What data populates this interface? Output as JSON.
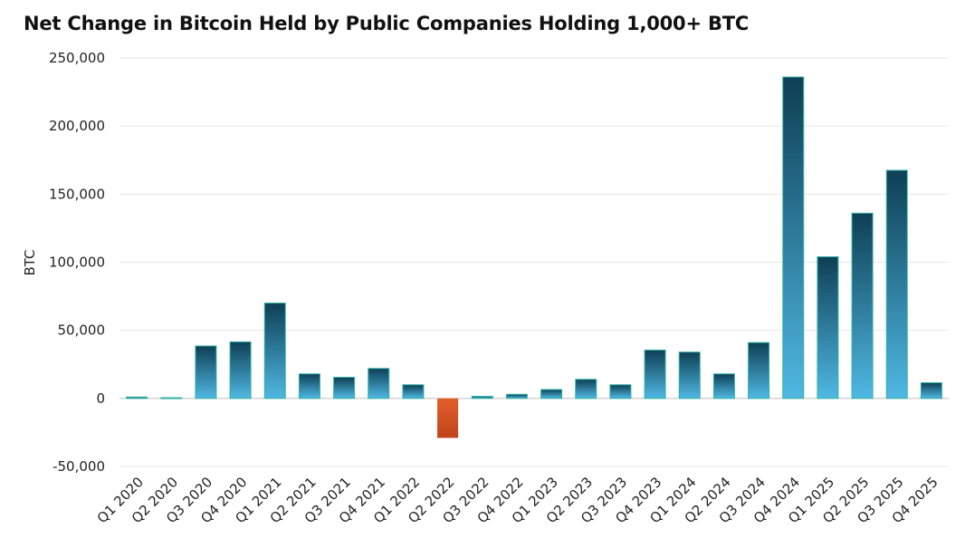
{
  "chart_data": {
    "type": "bar",
    "title": "Net Change in Bitcoin Held by Public Companies Holding 1,000+ BTC",
    "xlabel": "",
    "ylabel": "BTC",
    "ylim": [
      -50000,
      250000
    ],
    "yticks": [
      -50000,
      0,
      50000,
      100000,
      150000,
      200000,
      250000
    ],
    "ytick_labels": [
      "-50,000",
      "0",
      "50,000",
      "100,000",
      "150,000",
      "200,000",
      "250,000"
    ],
    "grid": true,
    "legend": "none",
    "categories": [
      "Q1 2020",
      "Q2 2020",
      "Q3 2020",
      "Q4 2020",
      "Q1 2021",
      "Q2 2021",
      "Q3 2021",
      "Q4 2021",
      "Q1 2022",
      "Q2 2022",
      "Q3 2022",
      "Q4 2022",
      "Q1 2023",
      "Q2 2023",
      "Q3 2023",
      "Q4 2023",
      "Q1 2024",
      "Q2 2024",
      "Q3 2024",
      "Q4 2024",
      "Q1 2025",
      "Q2 2025",
      "Q3 2025",
      "Q4 2025"
    ],
    "values": [
      1000,
      500,
      38500,
      41500,
      70000,
      18000,
      15500,
      22000,
      10000,
      -29000,
      1500,
      3000,
      6500,
      14000,
      10000,
      35500,
      34000,
      18000,
      41000,
      236000,
      104000,
      136000,
      167500,
      11500
    ],
    "colors": {
      "positive_top": "#0e3f55",
      "positive_bottom": "#4fb8e3",
      "positive_edge": "#2fb3a3",
      "negative_top": "#e25e2b",
      "negative_bottom": "#c0441a"
    }
  }
}
